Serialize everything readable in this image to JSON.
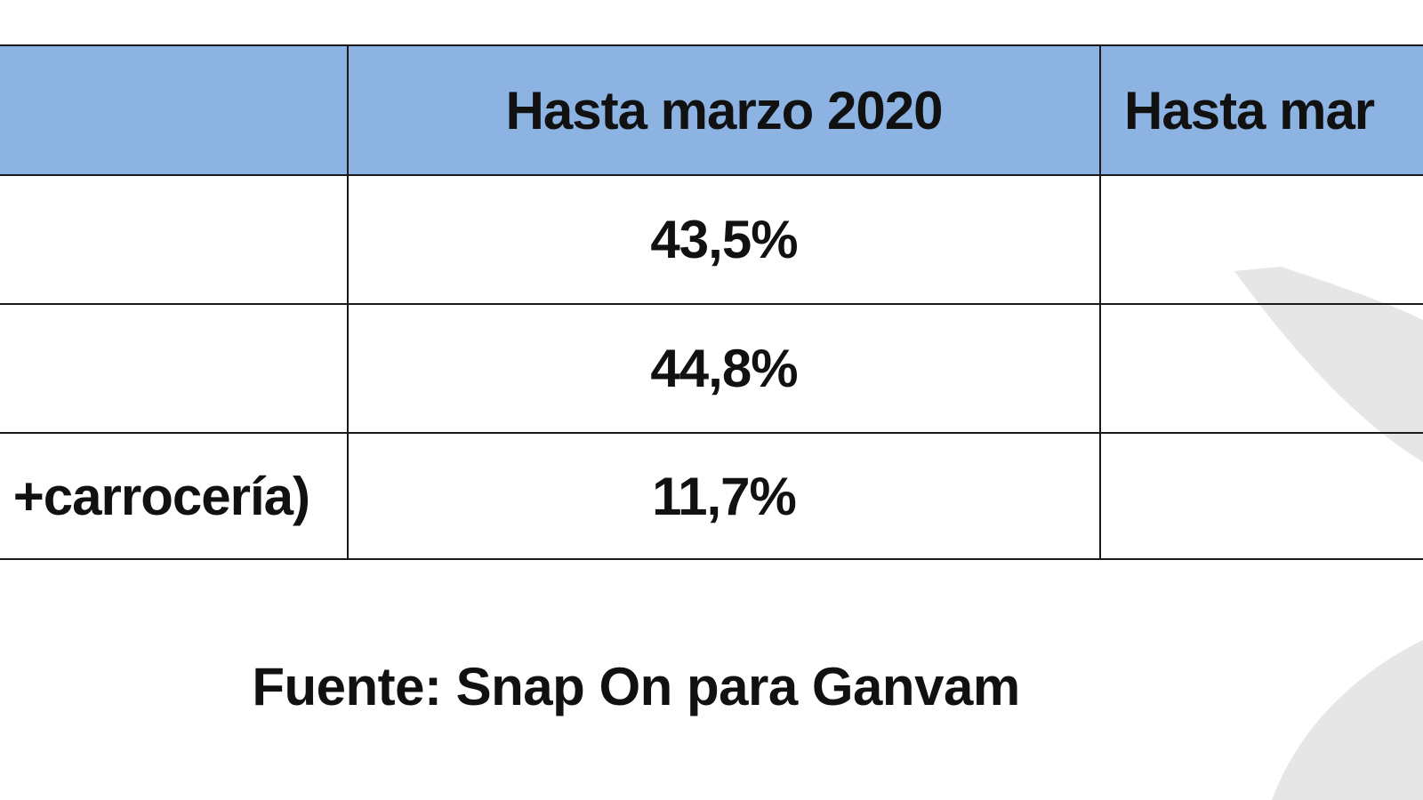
{
  "table": {
    "headers": [
      "",
      "Hasta marzo 2020",
      "Hasta mar"
    ],
    "rows": [
      [
        "",
        "43,5%",
        ""
      ],
      [
        "",
        "44,8%",
        ""
      ],
      [
        "+carrocería)",
        "11,7%",
        ""
      ]
    ]
  },
  "source": "Fuente: Snap On para Ganvam",
  "colors": {
    "header_bg": "#8db3e2",
    "border": "#1a1a1a",
    "text": "#111111",
    "watermark": "#e6e6e6"
  }
}
